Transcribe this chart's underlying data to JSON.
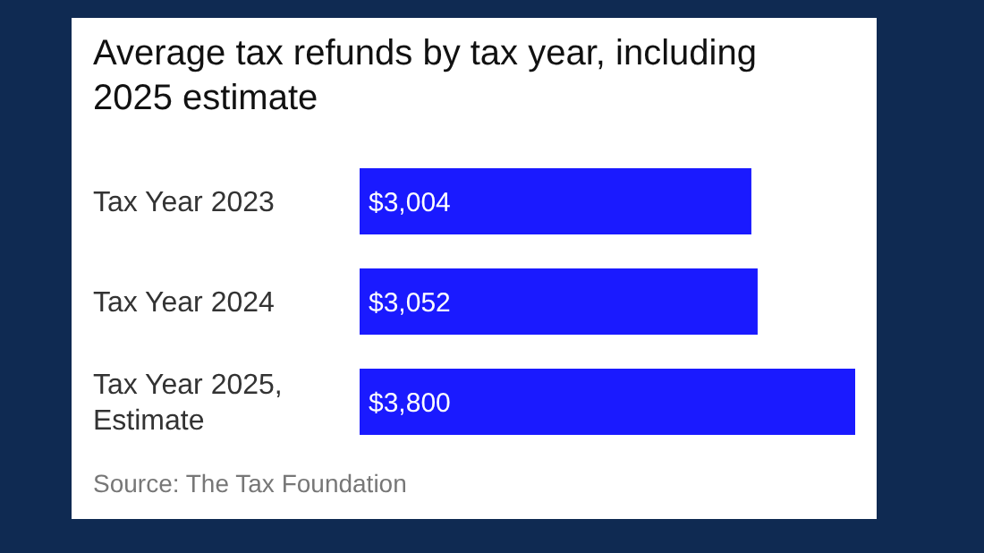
{
  "chart_data": {
    "type": "bar",
    "orientation": "horizontal",
    "title": "Average tax refunds by tax year, including 2025 estimate",
    "categories": [
      "Tax Year 2023",
      "Tax Year 2024",
      "Tax Year 2025, Estimate"
    ],
    "values": [
      3004,
      3052,
      3800
    ],
    "value_labels": [
      "$3,004",
      "$3,052",
      "$3,800"
    ],
    "color": "#1a1aff",
    "annotations": [
      "Source: The Tax Foundation"
    ]
  }
}
